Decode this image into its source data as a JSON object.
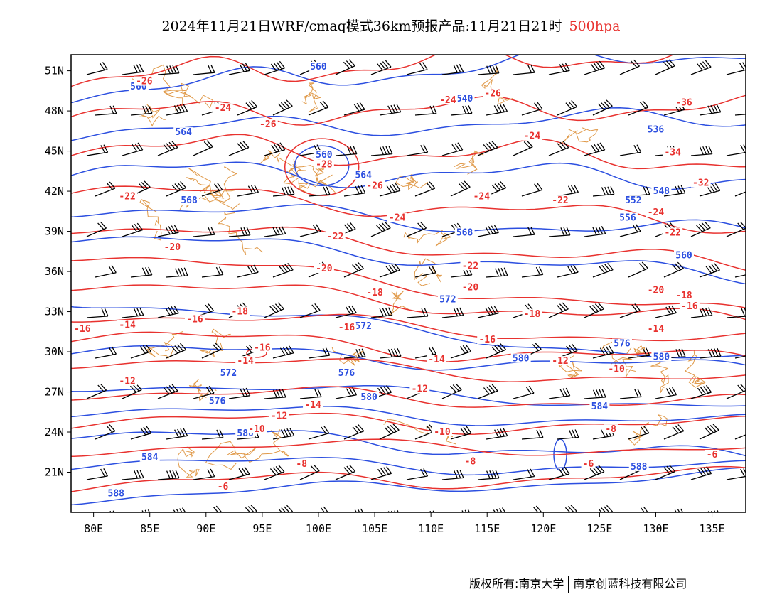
{
  "title": {
    "main": "2024年11月21日WRF/cmaq模式36km预报产品:11月21日21时",
    "level": "500hpa"
  },
  "axes": {
    "lon_ticks": [
      "80E",
      "85E",
      "90E",
      "95E",
      "100E",
      "105E",
      "110E",
      "115E",
      "120E",
      "125E",
      "130E",
      "135E"
    ],
    "lat_ticks": [
      "21N",
      "24N",
      "27N",
      "30N",
      "33N",
      "36N",
      "39N",
      "42N",
      "45N",
      "48N",
      "51N"
    ],
    "lon_range": [
      78,
      138
    ],
    "lat_range": [
      18,
      52.2
    ]
  },
  "colors": {
    "geopotential": "#2c4fe0",
    "temperature": "#e8322f",
    "wind_barbs": "#000000",
    "boundaries": "#e09a4a"
  },
  "chart_data": {
    "type": "map",
    "legend": "none",
    "grid": false,
    "geopotential_height_dagpm": [
      {
        "label": "560",
        "lon": 100,
        "lat": 51.2
      },
      {
        "label": "560",
        "lon": 84,
        "lat": 49.7
      },
      {
        "label": "560",
        "lon": 100.5,
        "lat": 44.6
      },
      {
        "label": "560",
        "lon": 132.5,
        "lat": 37.1
      },
      {
        "label": "564",
        "lon": 88,
        "lat": 46.3
      },
      {
        "label": "564",
        "lon": 104,
        "lat": 43.1
      },
      {
        "label": "568",
        "lon": 88.5,
        "lat": 41.2
      },
      {
        "label": "568",
        "lon": 113,
        "lat": 38.8
      },
      {
        "label": "572",
        "lon": 104,
        "lat": 31.8
      },
      {
        "label": "572",
        "lon": 111.5,
        "lat": 33.8
      },
      {
        "label": "572",
        "lon": 92,
        "lat": 28.3
      },
      {
        "label": "576",
        "lon": 102.5,
        "lat": 28.3
      },
      {
        "label": "576",
        "lon": 91,
        "lat": 26.2
      },
      {
        "label": "576",
        "lon": 127,
        "lat": 30.5
      },
      {
        "label": "580",
        "lon": 104.5,
        "lat": 26.5
      },
      {
        "label": "580",
        "lon": 118,
        "lat": 29.4
      },
      {
        "label": "580",
        "lon": 130.5,
        "lat": 29.5
      },
      {
        "label": "580",
        "lon": 93.5,
        "lat": 23.8
      },
      {
        "label": "584",
        "lon": 125,
        "lat": 25.8
      },
      {
        "label": "584",
        "lon": 85,
        "lat": 22.0
      },
      {
        "label": "588",
        "lon": 82,
        "lat": 19.3
      },
      {
        "label": "588",
        "lon": 128.5,
        "lat": 21.3
      },
      {
        "label": "536",
        "lon": 130,
        "lat": 46.5
      },
      {
        "label": "540",
        "lon": 113,
        "lat": 48.8
      },
      {
        "label": "548",
        "lon": 130.5,
        "lat": 41.9
      },
      {
        "label": "552",
        "lon": 128,
        "lat": 41.2
      },
      {
        "label": "556",
        "lon": 127.5,
        "lat": 39.9
      }
    ],
    "temperature_c": [
      {
        "label": "-26",
        "lon": 84.5,
        "lat": 50.1
      },
      {
        "label": "-24",
        "lon": 91.5,
        "lat": 48.1
      },
      {
        "label": "-26",
        "lon": 95.5,
        "lat": 46.9
      },
      {
        "label": "-28",
        "lon": 100.5,
        "lat": 43.9
      },
      {
        "label": "-26",
        "lon": 105,
        "lat": 42.3
      },
      {
        "label": "-24",
        "lon": 107,
        "lat": 39.9
      },
      {
        "label": "-22",
        "lon": 83,
        "lat": 41.5
      },
      {
        "label": "-22",
        "lon": 101.5,
        "lat": 38.5
      },
      {
        "label": "-20",
        "lon": 87,
        "lat": 37.7
      },
      {
        "label": "-20",
        "lon": 100.5,
        "lat": 36.1
      },
      {
        "label": "-18",
        "lon": 93,
        "lat": 32.9
      },
      {
        "label": "-18",
        "lon": 105,
        "lat": 34.3
      },
      {
        "label": "-16",
        "lon": 79,
        "lat": 31.6
      },
      {
        "label": "-14",
        "lon": 83,
        "lat": 31.9
      },
      {
        "label": "-16",
        "lon": 89,
        "lat": 32.3
      },
      {
        "label": "-16",
        "lon": 102.5,
        "lat": 31.7
      },
      {
        "label": "-16",
        "lon": 95,
        "lat": 30.2
      },
      {
        "label": "-14",
        "lon": 93.5,
        "lat": 29.2
      },
      {
        "label": "-12",
        "lon": 83,
        "lat": 27.7
      },
      {
        "label": "-12",
        "lon": 96.5,
        "lat": 25.1
      },
      {
        "label": "-14",
        "lon": 99.5,
        "lat": 25.9
      },
      {
        "label": "-10",
        "lon": 94.5,
        "lat": 24.1
      },
      {
        "label": "-12",
        "lon": 109,
        "lat": 27.1
      },
      {
        "label": "-14",
        "lon": 110.5,
        "lat": 29.3
      },
      {
        "label": "-8",
        "lon": 98.5,
        "lat": 21.5
      },
      {
        "label": "-6",
        "lon": 91.5,
        "lat": 19.8
      },
      {
        "label": "-10",
        "lon": 111,
        "lat": 23.9
      },
      {
        "label": "-8",
        "lon": 113.5,
        "lat": 21.7
      },
      {
        "label": "-6",
        "lon": 124,
        "lat": 21.5
      },
      {
        "label": "-8",
        "lon": 126,
        "lat": 24.1
      },
      {
        "label": "-10",
        "lon": 126.5,
        "lat": 28.6
      },
      {
        "label": "-12",
        "lon": 121.5,
        "lat": 29.2
      },
      {
        "label": "-16",
        "lon": 115,
        "lat": 30.8
      },
      {
        "label": "-18",
        "lon": 119,
        "lat": 32.7
      },
      {
        "label": "-20",
        "lon": 113.5,
        "lat": 34.7
      },
      {
        "label": "-22",
        "lon": 113.5,
        "lat": 36.3
      },
      {
        "label": "-24",
        "lon": 114.5,
        "lat": 41.5
      },
      {
        "label": "-22",
        "lon": 121.5,
        "lat": 41.2
      },
      {
        "label": "-24",
        "lon": 111.5,
        "lat": 48.7
      },
      {
        "label": "-26",
        "lon": 115.5,
        "lat": 49.2
      },
      {
        "label": "-24",
        "lon": 119,
        "lat": 46.0
      },
      {
        "label": "-24",
        "lon": 130,
        "lat": 40.3
      },
      {
        "label": "-22",
        "lon": 131.5,
        "lat": 38.8
      },
      {
        "label": "-20",
        "lon": 130,
        "lat": 34.5
      },
      {
        "label": "-18",
        "lon": 132.5,
        "lat": 34.1
      },
      {
        "label": "-16",
        "lon": 133,
        "lat": 33.3
      },
      {
        "label": "-14",
        "lon": 130,
        "lat": 31.6
      },
      {
        "label": "-32",
        "lon": 134,
        "lat": 42.5
      },
      {
        "label": "-34",
        "lon": 131.5,
        "lat": 44.8
      },
      {
        "label": "-36",
        "lon": 132.5,
        "lat": 48.5
      },
      {
        "label": "-6",
        "lon": 135,
        "lat": 22.2
      }
    ]
  },
  "copyright": {
    "left": "版权所有:南京大学",
    "right": "南京创蓝科技有限公司"
  }
}
